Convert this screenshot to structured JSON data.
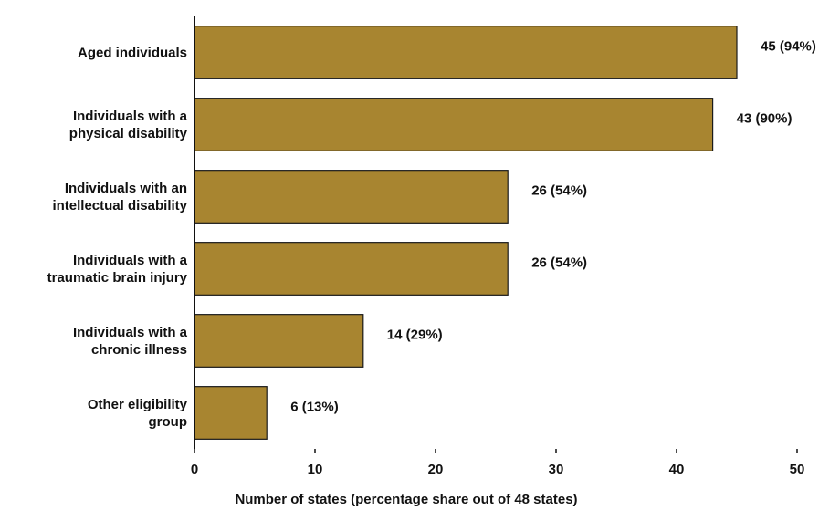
{
  "chart_data": {
    "type": "bar",
    "orientation": "horizontal",
    "categories": [
      [
        "Aged individuals"
      ],
      [
        "Individuals with a",
        "physical disability"
      ],
      [
        "Individuals with an",
        "intellectual disability"
      ],
      [
        "Individuals with a",
        "traumatic brain injury"
      ],
      [
        "Individuals with a",
        "chronic illness"
      ],
      [
        "Other eligibility",
        "group"
      ]
    ],
    "values": [
      45,
      43,
      26,
      26,
      14,
      6
    ],
    "data_labels": [
      "45 (94%)",
      "43 (90%)",
      "26 (54%)",
      "26 (54%)",
      "14 (29%)",
      "6 (13%)"
    ],
    "xlabel": "Number of states (percentage share out of 48 states)",
    "ylabel": "",
    "xlim": [
      0,
      50
    ],
    "xticks": [
      0,
      10,
      20,
      30,
      40,
      50
    ],
    "grid": false,
    "colors": {
      "bar": "#a88530",
      "bar_stroke": "#1a1a1a",
      "axis": "#111111"
    }
  }
}
